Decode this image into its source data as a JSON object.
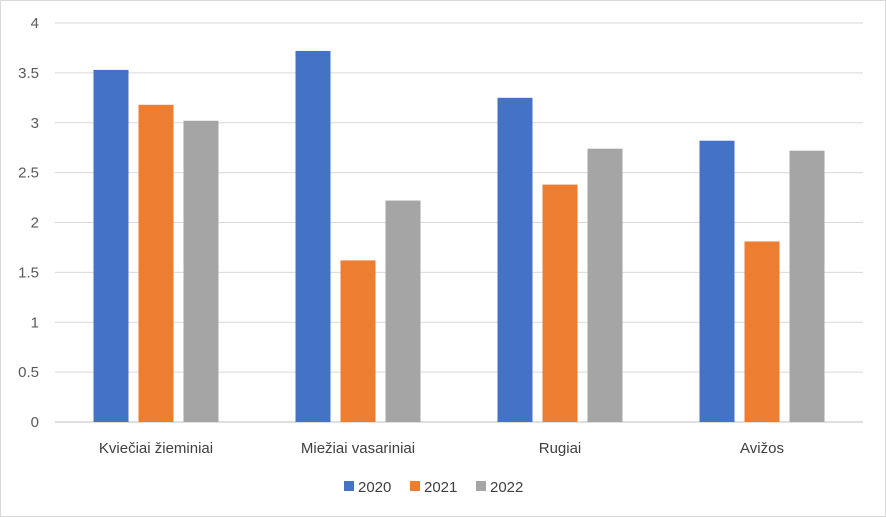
{
  "chart_data": {
    "type": "bar",
    "categories": [
      "Kviečiai žieminiai",
      "Miežiai vasariniai",
      "Rugiai",
      "Avižos"
    ],
    "series": [
      {
        "name": "2020",
        "color": "#4472c4",
        "values": [
          3.53,
          3.72,
          3.25,
          2.82
        ]
      },
      {
        "name": "2021",
        "color": "#ed7d31",
        "values": [
          3.18,
          1.62,
          2.38,
          1.81
        ]
      },
      {
        "name": "2022",
        "color": "#a5a5a5",
        "values": [
          3.02,
          2.22,
          2.74,
          2.72
        ]
      }
    ],
    "yticks": [
      "0",
      "0.5",
      "1",
      "1.5",
      "2",
      "2.5",
      "3",
      "3.5",
      "4"
    ],
    "ylim": [
      0,
      4
    ],
    "grid": true,
    "legend_position": "bottom"
  }
}
